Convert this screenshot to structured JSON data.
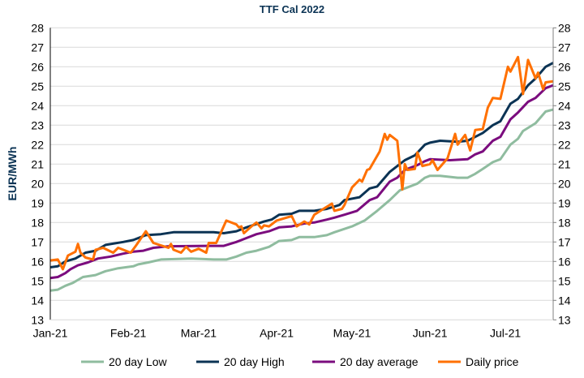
{
  "chart_data": {
    "type": "line",
    "title": "TTF Cal 2022",
    "ylabel": "EUR/MWh",
    "xlabel": "",
    "ylim": [
      13,
      28
    ],
    "yticks": [
      13,
      14,
      15,
      16,
      17,
      18,
      19,
      20,
      21,
      22,
      23,
      24,
      25,
      26,
      27,
      28
    ],
    "xlim": [
      "2021-01-01",
      "2021-07-20"
    ],
    "xticks": [
      {
        "date": "2021-01-01",
        "label": "Jan-21"
      },
      {
        "date": "2021-02-01",
        "label": "Feb-21"
      },
      {
        "date": "2021-03-01",
        "label": "Mar-21"
      },
      {
        "date": "2021-04-01",
        "label": "Apr-21"
      },
      {
        "date": "2021-05-01",
        "label": "May-21"
      },
      {
        "date": "2021-06-01",
        "label": "Jun-21"
      },
      {
        "date": "2021-07-01",
        "label": "Jul-21"
      }
    ],
    "grid": "horizontal",
    "secondary_y_axis": "mirrored",
    "legend_position": "bottom",
    "series": [
      {
        "name": "20 day Low",
        "color": "#8fbc9f",
        "points": [
          [
            "2021-01-01",
            14.5
          ],
          [
            "2021-01-04",
            14.55
          ],
          [
            "2021-01-07",
            14.75
          ],
          [
            "2021-01-10",
            14.9
          ],
          [
            "2021-01-14",
            15.2
          ],
          [
            "2021-01-19",
            15.3
          ],
          [
            "2021-01-23",
            15.5
          ],
          [
            "2021-01-28",
            15.65
          ],
          [
            "2021-02-03",
            15.75
          ],
          [
            "2021-02-05",
            15.85
          ],
          [
            "2021-02-09",
            15.95
          ],
          [
            "2021-02-14",
            16.1
          ],
          [
            "2021-02-26",
            16.15
          ],
          [
            "2021-03-07",
            16.1
          ],
          [
            "2021-03-12",
            16.1
          ],
          [
            "2021-03-16",
            16.25
          ],
          [
            "2021-03-20",
            16.45
          ],
          [
            "2021-03-24",
            16.55
          ],
          [
            "2021-03-29",
            16.75
          ],
          [
            "2021-04-02",
            17.05
          ],
          [
            "2021-04-07",
            17.1
          ],
          [
            "2021-04-10",
            17.25
          ],
          [
            "2021-04-16",
            17.25
          ],
          [
            "2021-04-21",
            17.35
          ],
          [
            "2021-04-24",
            17.5
          ],
          [
            "2021-05-01",
            17.8
          ],
          [
            "2021-05-06",
            18.1
          ],
          [
            "2021-05-11",
            18.6
          ],
          [
            "2021-05-16",
            19.15
          ],
          [
            "2021-05-20",
            19.65
          ],
          [
            "2021-05-27",
            20.0
          ],
          [
            "2021-05-30",
            20.3
          ],
          [
            "2021-06-01",
            20.4
          ],
          [
            "2021-06-05",
            20.4
          ],
          [
            "2021-06-12",
            20.3
          ],
          [
            "2021-06-16",
            20.3
          ],
          [
            "2021-06-19",
            20.5
          ],
          [
            "2021-06-22",
            20.75
          ],
          [
            "2021-06-26",
            21.1
          ],
          [
            "2021-06-29",
            21.25
          ],
          [
            "2021-07-03",
            22.0
          ],
          [
            "2021-07-06",
            22.3
          ],
          [
            "2021-07-08",
            22.7
          ],
          [
            "2021-07-13",
            23.1
          ],
          [
            "2021-07-17",
            23.7
          ],
          [
            "2021-07-20",
            23.8
          ]
        ]
      },
      {
        "name": "20 day High",
        "color": "#0b3354",
        "points": [
          [
            "2021-01-01",
            15.7
          ],
          [
            "2021-01-04",
            15.75
          ],
          [
            "2021-01-07",
            16.0
          ],
          [
            "2021-01-11",
            16.15
          ],
          [
            "2021-01-15",
            16.45
          ],
          [
            "2021-01-19",
            16.55
          ],
          [
            "2021-01-23",
            16.85
          ],
          [
            "2021-01-30",
            17.0
          ],
          [
            "2021-02-03",
            17.1
          ],
          [
            "2021-02-08",
            17.35
          ],
          [
            "2021-02-14",
            17.4
          ],
          [
            "2021-02-19",
            17.5
          ],
          [
            "2021-03-07",
            17.5
          ],
          [
            "2021-03-11",
            17.45
          ],
          [
            "2021-03-16",
            17.55
          ],
          [
            "2021-03-20",
            17.75
          ],
          [
            "2021-03-27",
            18.05
          ],
          [
            "2021-03-30",
            18.15
          ],
          [
            "2021-04-02",
            18.4
          ],
          [
            "2021-04-07",
            18.45
          ],
          [
            "2021-04-10",
            18.6
          ],
          [
            "2021-04-16",
            18.6
          ],
          [
            "2021-04-21",
            18.7
          ],
          [
            "2021-04-26",
            18.9
          ],
          [
            "2021-04-28",
            19.15
          ],
          [
            "2021-05-04",
            19.3
          ],
          [
            "2021-05-08",
            19.75
          ],
          [
            "2021-05-11",
            19.85
          ],
          [
            "2021-05-16",
            20.6
          ],
          [
            "2021-05-19",
            20.9
          ],
          [
            "2021-05-22",
            21.2
          ],
          [
            "2021-05-26",
            21.45
          ],
          [
            "2021-05-30",
            22.0
          ],
          [
            "2021-06-01",
            22.1
          ],
          [
            "2021-06-05",
            22.2
          ],
          [
            "2021-06-12",
            22.15
          ],
          [
            "2021-06-16",
            22.2
          ],
          [
            "2021-06-19",
            22.4
          ],
          [
            "2021-06-22",
            22.6
          ],
          [
            "2021-06-26",
            23.0
          ],
          [
            "2021-06-29",
            23.2
          ],
          [
            "2021-07-03",
            24.1
          ],
          [
            "2021-07-06",
            24.35
          ],
          [
            "2021-07-10",
            25.05
          ],
          [
            "2021-07-13",
            25.4
          ],
          [
            "2021-07-17",
            26.0
          ],
          [
            "2021-07-20",
            26.2
          ]
        ]
      },
      {
        "name": "20 day average",
        "color": "#7b0c7e",
        "points": [
          [
            "2021-01-01",
            15.15
          ],
          [
            "2021-01-04",
            15.2
          ],
          [
            "2021-01-07",
            15.4
          ],
          [
            "2021-01-09",
            15.6
          ],
          [
            "2021-01-12",
            15.8
          ],
          [
            "2021-01-16",
            15.95
          ],
          [
            "2021-01-20",
            16.15
          ],
          [
            "2021-01-25",
            16.25
          ],
          [
            "2021-01-30",
            16.4
          ],
          [
            "2021-02-03",
            16.5
          ],
          [
            "2021-02-07",
            16.55
          ],
          [
            "2021-02-11",
            16.7
          ],
          [
            "2021-02-17",
            16.78
          ],
          [
            "2021-03-07",
            16.8
          ],
          [
            "2021-03-11",
            16.8
          ],
          [
            "2021-03-16",
            17.0
          ],
          [
            "2021-03-20",
            17.2
          ],
          [
            "2021-03-24",
            17.4
          ],
          [
            "2021-03-29",
            17.55
          ],
          [
            "2021-04-02",
            17.75
          ],
          [
            "2021-04-07",
            17.8
          ],
          [
            "2021-04-12",
            17.95
          ],
          [
            "2021-04-16",
            18.0
          ],
          [
            "2021-04-21",
            18.15
          ],
          [
            "2021-04-24",
            18.25
          ],
          [
            "2021-04-28",
            18.4
          ],
          [
            "2021-05-03",
            18.6
          ],
          [
            "2021-05-08",
            19.15
          ],
          [
            "2021-05-11",
            19.3
          ],
          [
            "2021-05-16",
            20.1
          ],
          [
            "2021-05-19",
            20.3
          ],
          [
            "2021-05-22",
            20.7
          ],
          [
            "2021-05-27",
            20.95
          ],
          [
            "2021-05-30",
            21.15
          ],
          [
            "2021-06-01",
            21.25
          ],
          [
            "2021-06-09",
            21.2
          ],
          [
            "2021-06-16",
            21.25
          ],
          [
            "2021-06-19",
            21.5
          ],
          [
            "2021-06-22",
            21.65
          ],
          [
            "2021-06-26",
            22.2
          ],
          [
            "2021-06-29",
            22.4
          ],
          [
            "2021-07-03",
            23.3
          ],
          [
            "2021-07-06",
            23.65
          ],
          [
            "2021-07-10",
            24.2
          ],
          [
            "2021-07-13",
            24.4
          ],
          [
            "2021-07-17",
            24.9
          ],
          [
            "2021-07-20",
            25.05
          ]
        ]
      },
      {
        "name": "Daily price",
        "color": "#ff7000",
        "points": [
          [
            "2021-01-01",
            16.05
          ],
          [
            "2021-01-04",
            16.1
          ],
          [
            "2021-01-06",
            15.6
          ],
          [
            "2021-01-08",
            16.3
          ],
          [
            "2021-01-11",
            16.5
          ],
          [
            "2021-01-12",
            16.9
          ],
          [
            "2021-01-13",
            16.45
          ],
          [
            "2021-01-15",
            16.2
          ],
          [
            "2021-01-18",
            16.1
          ],
          [
            "2021-01-19",
            16.6
          ],
          [
            "2021-01-22",
            16.7
          ],
          [
            "2021-01-26",
            16.45
          ],
          [
            "2021-01-28",
            16.7
          ],
          [
            "2021-02-02",
            16.45
          ],
          [
            "2021-02-04",
            16.8
          ],
          [
            "2021-02-08",
            17.55
          ],
          [
            "2021-02-11",
            16.95
          ],
          [
            "2021-02-17",
            16.7
          ],
          [
            "2021-02-18",
            16.9
          ],
          [
            "2021-02-19",
            16.6
          ],
          [
            "2021-02-22",
            16.45
          ],
          [
            "2021-02-24",
            16.75
          ],
          [
            "2021-02-26",
            16.5
          ],
          [
            "2021-03-01",
            16.65
          ],
          [
            "2021-03-04",
            16.45
          ],
          [
            "2021-03-05",
            16.95
          ],
          [
            "2021-03-08",
            16.95
          ],
          [
            "2021-03-12",
            18.1
          ],
          [
            "2021-03-16",
            17.9
          ],
          [
            "2021-03-17",
            17.75
          ],
          [
            "2021-03-18",
            17.8
          ],
          [
            "2021-03-19",
            17.45
          ],
          [
            "2021-03-22",
            17.8
          ],
          [
            "2021-03-24",
            18.0
          ],
          [
            "2021-03-26",
            17.7
          ],
          [
            "2021-03-27",
            17.85
          ],
          [
            "2021-03-29",
            17.8
          ],
          [
            "2021-04-01",
            18.1
          ],
          [
            "2021-04-07",
            18.33
          ],
          [
            "2021-04-09",
            17.8
          ],
          [
            "2021-04-12",
            18.05
          ],
          [
            "2021-04-14",
            17.9
          ],
          [
            "2021-04-16",
            18.4
          ],
          [
            "2021-04-19",
            18.65
          ],
          [
            "2021-04-23",
            18.97
          ],
          [
            "2021-04-24",
            18.6
          ],
          [
            "2021-04-27",
            18.7
          ],
          [
            "2021-04-28",
            18.9
          ],
          [
            "2021-05-01",
            19.8
          ],
          [
            "2021-05-04",
            20.2
          ],
          [
            "2021-05-05",
            20.1
          ],
          [
            "2021-05-07",
            20.7
          ],
          [
            "2021-05-08",
            20.75
          ],
          [
            "2021-05-12",
            21.65
          ],
          [
            "2021-05-14",
            22.55
          ],
          [
            "2021-05-15",
            22.25
          ],
          [
            "2021-05-16",
            22.5
          ],
          [
            "2021-05-19",
            22.2
          ],
          [
            "2021-05-21",
            19.7
          ],
          [
            "2021-05-22",
            21.0
          ],
          [
            "2021-05-23",
            20.7
          ],
          [
            "2021-05-26",
            20.75
          ],
          [
            "2021-05-27",
            21.6
          ],
          [
            "2021-05-29",
            20.9
          ],
          [
            "2021-06-01",
            21.0
          ],
          [
            "2021-06-02",
            21.2
          ],
          [
            "2021-06-04",
            20.7
          ],
          [
            "2021-06-08",
            21.3
          ],
          [
            "2021-06-11",
            22.55
          ],
          [
            "2021-06-12",
            22.0
          ],
          [
            "2021-06-15",
            22.5
          ],
          [
            "2021-06-17",
            21.7
          ],
          [
            "2021-06-19",
            22.75
          ],
          [
            "2021-06-22",
            22.8
          ],
          [
            "2021-06-24",
            23.9
          ],
          [
            "2021-06-26",
            24.4
          ],
          [
            "2021-06-29",
            24.35
          ],
          [
            "2021-07-02",
            26.0
          ],
          [
            "2021-07-03",
            25.75
          ],
          [
            "2021-07-06",
            26.5
          ],
          [
            "2021-07-08",
            24.6
          ],
          [
            "2021-07-10",
            26.35
          ],
          [
            "2021-07-13",
            25.4
          ],
          [
            "2021-07-14",
            25.7
          ],
          [
            "2021-07-16",
            24.85
          ],
          [
            "2021-07-17",
            25.2
          ],
          [
            "2021-07-20",
            25.25
          ]
        ]
      }
    ]
  }
}
